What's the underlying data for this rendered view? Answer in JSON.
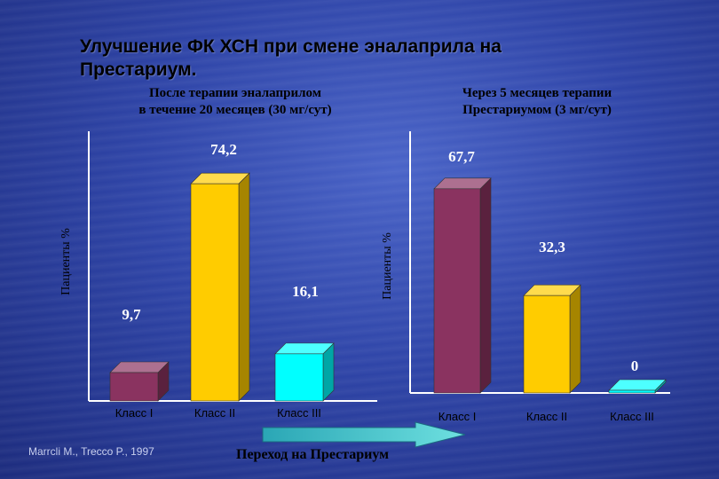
{
  "title_lines": [
    "Улучшение ФК ХСН при смене эналаприла на",
    "Престариум."
  ],
  "left_subtitle": [
    "После терапии эналаприлом",
    "в течение 20 месяцев (30 мг/сут)"
  ],
  "right_subtitle": [
    "Через 5 месяцев терапии",
    "Престариумом (3 мг/сут)"
  ],
  "credit": "Marrcli M., Trecco P., 1997",
  "transition_label": "Переход на Престариум",
  "colors": {
    "class1": "#8a3360",
    "class2": "#ffcc00",
    "class3": "#00ffff",
    "arrow": "#40c8c8"
  },
  "chart_data": [
    {
      "type": "bar",
      "ylabel": "Пациенты %",
      "categories": [
        "Класс I",
        "Класс II",
        "Класс III"
      ],
      "values": [
        9.7,
        74.2,
        16.1
      ],
      "value_labels": [
        "9,7",
        "74,2",
        "16,1"
      ]
    },
    {
      "type": "bar",
      "ylabel": "Пациенты %",
      "categories": [
        "Класс I",
        "Класс II",
        "Класс III"
      ],
      "values": [
        67.7,
        32.3,
        0
      ],
      "value_labels": [
        "67,7",
        "32,3",
        "0"
      ]
    }
  ]
}
